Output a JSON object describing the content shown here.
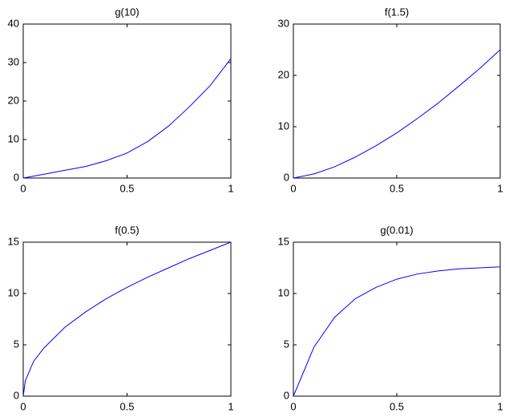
{
  "chart_data": [
    {
      "type": "line",
      "title": "g(10)",
      "x": [
        0,
        0.1,
        0.2,
        0.3,
        0.4,
        0.5,
        0.6,
        0.7,
        0.8,
        0.9,
        1
      ],
      "series": [
        {
          "color": "#0000ff",
          "values": [
            0,
            1,
            2,
            3,
            4.5,
            6.5,
            9.5,
            13.5,
            18.5,
            24,
            31
          ]
        }
      ],
      "xlim": [
        0,
        1
      ],
      "xticks": [
        0,
        0.5,
        1
      ],
      "ylim": [
        0,
        40
      ],
      "yticks": [
        0,
        10,
        20,
        30,
        40
      ]
    },
    {
      "type": "line",
      "title": "f(1.5)",
      "x": [
        0,
        0.1,
        0.2,
        0.3,
        0.4,
        0.5,
        0.6,
        0.7,
        0.8,
        0.9,
        1
      ],
      "series": [
        {
          "color": "#0000ff",
          "values": [
            0,
            0.8,
            2.2,
            4.1,
            6.3,
            8.8,
            11.6,
            14.6,
            17.9,
            21.3,
            25
          ]
        }
      ],
      "xlim": [
        0,
        1
      ],
      "xticks": [
        0,
        0.5,
        1
      ],
      "ylim": [
        0,
        30
      ],
      "yticks": [
        0,
        10,
        20,
        30
      ]
    },
    {
      "type": "line",
      "title": "f(0.5)",
      "x": [
        0,
        0.01,
        0.05,
        0.1,
        0.2,
        0.3,
        0.4,
        0.5,
        0.6,
        0.7,
        0.8,
        0.9,
        1
      ],
      "series": [
        {
          "color": "#0000ff",
          "values": [
            0,
            1.5,
            3.4,
            4.7,
            6.7,
            8.2,
            9.5,
            10.6,
            11.6,
            12.5,
            13.4,
            14.2,
            15
          ]
        }
      ],
      "xlim": [
        0,
        1
      ],
      "xticks": [
        0,
        0.5,
        1
      ],
      "ylim": [
        0,
        15
      ],
      "yticks": [
        0,
        5,
        10,
        15
      ]
    },
    {
      "type": "line",
      "title": "g(0.01)",
      "x": [
        0,
        0.1,
        0.2,
        0.3,
        0.4,
        0.5,
        0.6,
        0.7,
        0.8,
        0.9,
        1
      ],
      "series": [
        {
          "color": "#0000ff",
          "values": [
            0,
            4.8,
            7.7,
            9.5,
            10.6,
            11.4,
            11.9,
            12.2,
            12.4,
            12.5,
            12.6
          ]
        }
      ],
      "xlim": [
        0,
        1
      ],
      "xticks": [
        0,
        0.5,
        1
      ],
      "ylim": [
        0,
        15
      ],
      "yticks": [
        0,
        5,
        10,
        15
      ]
    }
  ]
}
